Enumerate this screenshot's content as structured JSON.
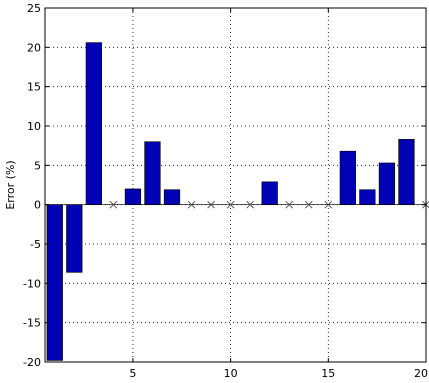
{
  "chart_data": {
    "type": "bar",
    "title": "",
    "xlabel": "",
    "ylabel": "Error (%)",
    "xlim": [
      0.5,
      20
    ],
    "ylim": [
      -20,
      25
    ],
    "xticks": [
      5,
      10,
      15,
      20
    ],
    "yticks": [
      -20,
      -15,
      -10,
      -5,
      0,
      5,
      10,
      15,
      20,
      25
    ],
    "grid": true,
    "bar_color": "#0000B4",
    "marker_color": "#555555",
    "categories": [
      1,
      2,
      3,
      4,
      5,
      6,
      7,
      8,
      9,
      10,
      11,
      12,
      13,
      14,
      15,
      16,
      17,
      18,
      19,
      20
    ],
    "values": [
      -19.8,
      -8.6,
      20.6,
      null,
      2.0,
      8.0,
      1.9,
      null,
      null,
      null,
      null,
      2.9,
      null,
      null,
      null,
      6.8,
      1.9,
      5.3,
      8.3,
      null
    ],
    "zero_markers": [
      4,
      8,
      9,
      10,
      11,
      13,
      14,
      15,
      20
    ]
  }
}
